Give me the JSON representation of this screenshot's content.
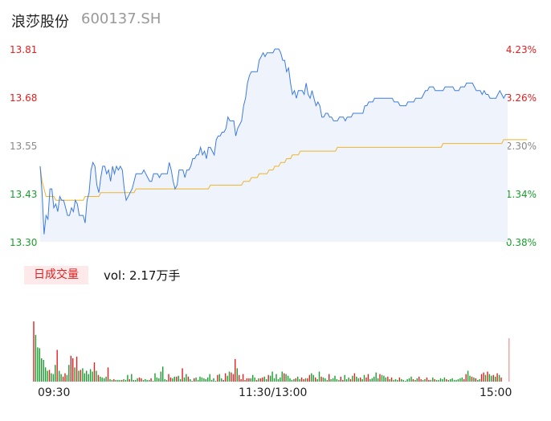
{
  "header": {
    "name": "浪莎股份",
    "code": "600137.SH"
  },
  "price_axis": [
    {
      "price": "13.81",
      "pct": "4.23%",
      "tone": "up"
    },
    {
      "price": "13.68",
      "pct": "3.26%",
      "tone": "up"
    },
    {
      "price": "13.55",
      "pct": "2.30%",
      "tone": "flat"
    },
    {
      "price": "13.43",
      "pct": "1.34%",
      "tone": "down"
    },
    {
      "price": "13.30",
      "pct": "0.38%",
      "tone": "down"
    }
  ],
  "volume_panel": {
    "tab_label": "日成交量",
    "vol_text": "vol: 2.17万手"
  },
  "time_axis": {
    "start": "09:30",
    "mid": "11:30/13:00",
    "end": "15:00"
  },
  "colors": {
    "price_line": "#3d7be0",
    "avg_line": "#f0b429",
    "area_fill": "#eef3fc",
    "up": "#e02020",
    "down": "#1a9e2e"
  },
  "chart_data": {
    "type": "line",
    "ylim": [
      13.3,
      13.81
    ],
    "pct_range": [
      "0.38%",
      "4.23%"
    ],
    "x_count": 240,
    "price": [
      13.5,
      13.43,
      13.32,
      13.37,
      13.36,
      13.44,
      13.44,
      13.39,
      13.4,
      13.38,
      13.42,
      13.41,
      13.41,
      13.39,
      13.37,
      13.37,
      13.39,
      13.38,
      13.41,
      13.4,
      13.37,
      13.37,
      13.37,
      13.35,
      13.41,
      13.43,
      13.49,
      13.51,
      13.5,
      13.45,
      13.43,
      13.47,
      13.5,
      13.5,
      13.48,
      13.49,
      13.46,
      13.5,
      13.48,
      13.5,
      13.49,
      13.5,
      13.49,
      13.44,
      13.41,
      13.42,
      13.43,
      13.44,
      13.46,
      13.48,
      13.48,
      13.48,
      13.48,
      13.49,
      13.48,
      13.47,
      13.46,
      13.46,
      13.48,
      13.48,
      13.48,
      13.47,
      13.48,
      13.48,
      13.48,
      13.48,
      13.51,
      13.49,
      13.46,
      13.44,
      13.45,
      13.49,
      13.49,
      13.49,
      13.47,
      13.49,
      13.49,
      13.5,
      13.52,
      13.52,
      13.53,
      13.53,
      13.55,
      13.53,
      13.54,
      13.52,
      13.55,
      13.55,
      13.54,
      13.53,
      13.57,
      13.58,
      13.58,
      13.59,
      13.59,
      13.6,
      13.63,
      13.62,
      13.62,
      13.62,
      13.58,
      13.6,
      13.61,
      13.62,
      13.66,
      13.68,
      13.72,
      13.74,
      13.75,
      13.75,
      13.75,
      13.75,
      13.78,
      13.79,
      13.8,
      13.79,
      13.8,
      13.8,
      13.8,
      13.8,
      13.81,
      13.81,
      13.81,
      13.8,
      13.78,
      13.78,
      13.75,
      13.76,
      13.72,
      13.69,
      13.7,
      13.68,
      13.7,
      13.7,
      13.7,
      13.69,
      13.72,
      13.69,
      13.68,
      13.7,
      13.68,
      13.66,
      13.67,
      13.66,
      13.63,
      13.63,
      13.64,
      13.64,
      13.63,
      13.63,
      13.62,
      13.62,
      13.62,
      13.63,
      13.63,
      13.63,
      13.62,
      13.63,
      13.63,
      13.63,
      13.64,
      13.64,
      13.64,
      13.64,
      13.64,
      13.64,
      13.66,
      13.66,
      13.67,
      13.67,
      13.67,
      13.68,
      13.68,
      13.68,
      13.68,
      13.68,
      13.68,
      13.68,
      13.68,
      13.68,
      13.68,
      13.67,
      13.67,
      13.67,
      13.66,
      13.66,
      13.66,
      13.66,
      13.67,
      13.67,
      13.67,
      13.67,
      13.68,
      13.68,
      13.68,
      13.68,
      13.69,
      13.7,
      13.7,
      13.71,
      13.71,
      13.71,
      13.7,
      13.7,
      13.7,
      13.7,
      13.7,
      13.71,
      13.71,
      13.71,
      13.71,
      13.71,
      13.7,
      13.7,
      13.7,
      13.71,
      13.71,
      13.71,
      13.72,
      13.72,
      13.72,
      13.72,
      13.71,
      13.7,
      13.7,
      13.7,
      13.69,
      13.7,
      13.69,
      13.69,
      13.68,
      13.68,
      13.68,
      13.68,
      13.69,
      13.7,
      13.69,
      13.68,
      13.69,
      13.69
    ],
    "avg": [
      13.5,
      13.46,
      13.44,
      13.42,
      13.42,
      13.42,
      13.42,
      13.42,
      13.41,
      13.41,
      13.41,
      13.41,
      13.41,
      13.41,
      13.41,
      13.41,
      13.41,
      13.41,
      13.41,
      13.41,
      13.41,
      13.41,
      13.41,
      13.42,
      13.42,
      13.42,
      13.42,
      13.42,
      13.42,
      13.42,
      13.42,
      13.43,
      13.43,
      13.43,
      13.43,
      13.43,
      13.43,
      13.43,
      13.43,
      13.43,
      13.43,
      13.43,
      13.43,
      13.43,
      13.43,
      13.43,
      13.43,
      13.43,
      13.43,
      13.44,
      13.44,
      13.44,
      13.44,
      13.44,
      13.44,
      13.44,
      13.44,
      13.44,
      13.44,
      13.44,
      13.44,
      13.44,
      13.44,
      13.44,
      13.44,
      13.44,
      13.44,
      13.44,
      13.44,
      13.44,
      13.44,
      13.44,
      13.44,
      13.44,
      13.44,
      13.44,
      13.44,
      13.44,
      13.44,
      13.44,
      13.44,
      13.44,
      13.44,
      13.44,
      13.44,
      13.44,
      13.44,
      13.45,
      13.45,
      13.45,
      13.45,
      13.45,
      13.45,
      13.45,
      13.45,
      13.45,
      13.45,
      13.45,
      13.45,
      13.45,
      13.45,
      13.45,
      13.45,
      13.45,
      13.46,
      13.46,
      13.46,
      13.46,
      13.47,
      13.47,
      13.47,
      13.47,
      13.48,
      13.48,
      13.48,
      13.48,
      13.48,
      13.49,
      13.49,
      13.49,
      13.5,
      13.5,
      13.5,
      13.51,
      13.51,
      13.51,
      13.52,
      13.52,
      13.52,
      13.53,
      13.53,
      13.53,
      13.53,
      13.54,
      13.54,
      13.54,
      13.54,
      13.54,
      13.54,
      13.54,
      13.54,
      13.54,
      13.54,
      13.54,
      13.54,
      13.54,
      13.54,
      13.54,
      13.54,
      13.54,
      13.54,
      13.54,
      13.55,
      13.55,
      13.55,
      13.55,
      13.55,
      13.55,
      13.55,
      13.55,
      13.55,
      13.55,
      13.55,
      13.55,
      13.55,
      13.55,
      13.55,
      13.55,
      13.55,
      13.55,
      13.55,
      13.55,
      13.55,
      13.55,
      13.55,
      13.55,
      13.55,
      13.55,
      13.55,
      13.55,
      13.55,
      13.55,
      13.55,
      13.55,
      13.55,
      13.55,
      13.55,
      13.55,
      13.55,
      13.55,
      13.55,
      13.55,
      13.55,
      13.55,
      13.55,
      13.55,
      13.55,
      13.55,
      13.55,
      13.55,
      13.55,
      13.55,
      13.55,
      13.55,
      13.55,
      13.55,
      13.56,
      13.56,
      13.56,
      13.56,
      13.56,
      13.56,
      13.56,
      13.56,
      13.56,
      13.56,
      13.56,
      13.56,
      13.56,
      13.56,
      13.56,
      13.56,
      13.56,
      13.56,
      13.56,
      13.56,
      13.56,
      13.56,
      13.56,
      13.56,
      13.56,
      13.56,
      13.56,
      13.56,
      13.56,
      13.56,
      13.56,
      13.57,
      13.57,
      13.57,
      13.57,
      13.57,
      13.57,
      13.57,
      13.57,
      13.57,
      13.57,
      13.57,
      13.57,
      13.57
    ],
    "volume_scale_max": 100,
    "volume_up": [
      1,
      0,
      0,
      0,
      0,
      0,
      0,
      0,
      1,
      0,
      0,
      0,
      1,
      0,
      0,
      1,
      1,
      0,
      0,
      1,
      1,
      0,
      1,
      0,
      1,
      0,
      0,
      0,
      0,
      0,
      0,
      1,
      0,
      1,
      0,
      0,
      0,
      0,
      1,
      0,
      0,
      1,
      0,
      0,
      0,
      1,
      0,
      0,
      0,
      1,
      0,
      0,
      0,
      0,
      1,
      1,
      0,
      0,
      0,
      0,
      1,
      0,
      0,
      0,
      0,
      0,
      0,
      0,
      0,
      1,
      1,
      0,
      0,
      1,
      0,
      0,
      1,
      0,
      0,
      1,
      0,
      0,
      1,
      0,
      0,
      0,
      0,
      0,
      0,
      0,
      0,
      0,
      0,
      0,
      1,
      0,
      0,
      1,
      1,
      0,
      0,
      1,
      1,
      1,
      0,
      1,
      1,
      1,
      0,
      1,
      1,
      0,
      0,
      0,
      1,
      0,
      1,
      1,
      0,
      0,
      1,
      0,
      0,
      0,
      0,
      0,
      0,
      0,
      1,
      0,
      0,
      0,
      0,
      0,
      1,
      0,
      0,
      1,
      1,
      0,
      1,
      1,
      0,
      0,
      1,
      0,
      0,
      1,
      0,
      0,
      0,
      1,
      0,
      0,
      0,
      0,
      0,
      1,
      1,
      0,
      0,
      0,
      1,
      0,
      1,
      0,
      0,
      1,
      0,
      0,
      1,
      1,
      0,
      0,
      0,
      0,
      0,
      1,
      0,
      0,
      0,
      1,
      0,
      1,
      0,
      0,
      0,
      1,
      0,
      0,
      0,
      0,
      0,
      0,
      1,
      0,
      0,
      1,
      1,
      0,
      0,
      1,
      1,
      0,
      0,
      1,
      0,
      0,
      0,
      0,
      0,
      1,
      0,
      0,
      0,
      0,
      0,
      0,
      0,
      0,
      1,
      1,
      0,
      0,
      1,
      0,
      1,
      0,
      0,
      1,
      1,
      0,
      1,
      0,
      0,
      1,
      0,
      1,
      0,
      1
    ],
    "volume": [
      72,
      56,
      41,
      40,
      28,
      26,
      17,
      13,
      14,
      10,
      9,
      20,
      38,
      13,
      9,
      6,
      10,
      8,
      20,
      31,
      28,
      17,
      30,
      13,
      14,
      16,
      10,
      13,
      9,
      15,
      12,
      23,
      13,
      8,
      6,
      5,
      4,
      6,
      17,
      3,
      2,
      3,
      2,
      2,
      2,
      2,
      3,
      2,
      8,
      3,
      9,
      2,
      2,
      4,
      5,
      4,
      2,
      3,
      2,
      2,
      4,
      1,
      10,
      5,
      4,
      12,
      18,
      3,
      2,
      9,
      5,
      4,
      6,
      6,
      7,
      3,
      16,
      5,
      9,
      6,
      3,
      1,
      4,
      5,
      2,
      6,
      5,
      4,
      3,
      5,
      9,
      2,
      4,
      1,
      8,
      9,
      4,
      2,
      10,
      7,
      12,
      11,
      9,
      27,
      16,
      8,
      3,
      9,
      2,
      4,
      4,
      4,
      8,
      5,
      2,
      4,
      4,
      5,
      6,
      3,
      8,
      7,
      12,
      4,
      9,
      3,
      5,
      12,
      10,
      9,
      7,
      4,
      2,
      3,
      4,
      6,
      3,
      5,
      3,
      4,
      4,
      8,
      10,
      8,
      5,
      3,
      12,
      6,
      5,
      4,
      2,
      9,
      3,
      4,
      7,
      3,
      2,
      6,
      2,
      8,
      3,
      5,
      3,
      7,
      10,
      6,
      4,
      5,
      3,
      8,
      5,
      9,
      3,
      4,
      6,
      11,
      4,
      9,
      8,
      7,
      5,
      6,
      3,
      5,
      2,
      3,
      2,
      5,
      3,
      2,
      1,
      3,
      4,
      6,
      3,
      2,
      4,
      6,
      3,
      2,
      3,
      5,
      2,
      2,
      5,
      3,
      2,
      2,
      4,
      3,
      5,
      3,
      2,
      3,
      4,
      2,
      2,
      3,
      4,
      5,
      3,
      9,
      13,
      7,
      6,
      5,
      4,
      2,
      3,
      9,
      11,
      8,
      12,
      9,
      7,
      8,
      6,
      10,
      8,
      5
    ]
  }
}
